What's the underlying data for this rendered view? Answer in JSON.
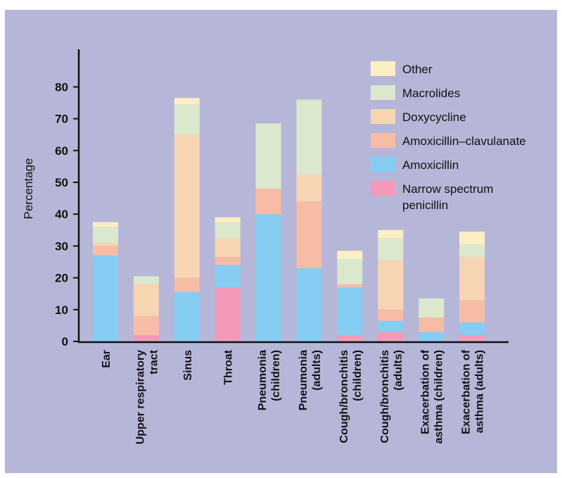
{
  "chart_data": {
    "type": "bar",
    "stacked": true,
    "ylabel": "Percentage",
    "ylim": [
      0,
      90
    ],
    "yticks": [
      0,
      10,
      20,
      30,
      40,
      50,
      60,
      70,
      80
    ],
    "categories": [
      [
        "Ear"
      ],
      [
        "Upper respiratory",
        "tract"
      ],
      [
        "Sinus"
      ],
      [
        "Throat"
      ],
      [
        "Pneumonia",
        "(children)"
      ],
      [
        "Pneumonia",
        "(adults)"
      ],
      [
        "Cough/bronchitis",
        "(children)"
      ],
      [
        "Cough/bronchitis",
        "(adults)"
      ],
      [
        "Exacerbation of",
        "asthma (children)"
      ],
      [
        "Exacerbation of",
        "asthma (adults)"
      ]
    ],
    "series": [
      {
        "name": "Narrow spectrum penicillin",
        "color": "#f29ab8",
        "values": [
          0,
          2,
          0,
          17,
          0,
          0,
          2,
          3,
          0,
          2
        ]
      },
      {
        "name": "Amoxicillin",
        "color": "#85cdf2",
        "values": [
          27,
          0,
          15.5,
          7,
          40,
          23,
          15,
          3.5,
          3,
          4
        ]
      },
      {
        "name": "Amoxicillin–clavulanate",
        "color": "#f7bca6",
        "values": [
          3,
          6,
          4.5,
          2.5,
          8,
          21,
          1,
          3.5,
          4.5,
          7
        ]
      },
      {
        "name": "Doxycycline",
        "color": "#f7d5b2",
        "values": [
          1,
          10,
          45,
          6,
          0,
          8.5,
          0,
          15.5,
          0,
          13.5
        ]
      },
      {
        "name": "Macrolides",
        "color": "#dbe8cd",
        "values": [
          5,
          2.5,
          9.5,
          5,
          20.5,
          23.5,
          8,
          7,
          6,
          4
        ]
      },
      {
        "name": "Other",
        "color": "#fcefc4",
        "values": [
          1.5,
          0,
          2,
          1.5,
          0,
          0,
          2.5,
          2.5,
          0,
          4
        ]
      }
    ],
    "legend_order": [
      "Other",
      "Macrolides",
      "Doxycycline",
      "Amoxicillin–clavulanate",
      "Amoxicillin",
      "Narrow spectrum penicillin"
    ],
    "legend_position": "top-right",
    "grid": false
  },
  "colors": {
    "panel_background": "#b6b7d8",
    "axis": "#111111"
  }
}
